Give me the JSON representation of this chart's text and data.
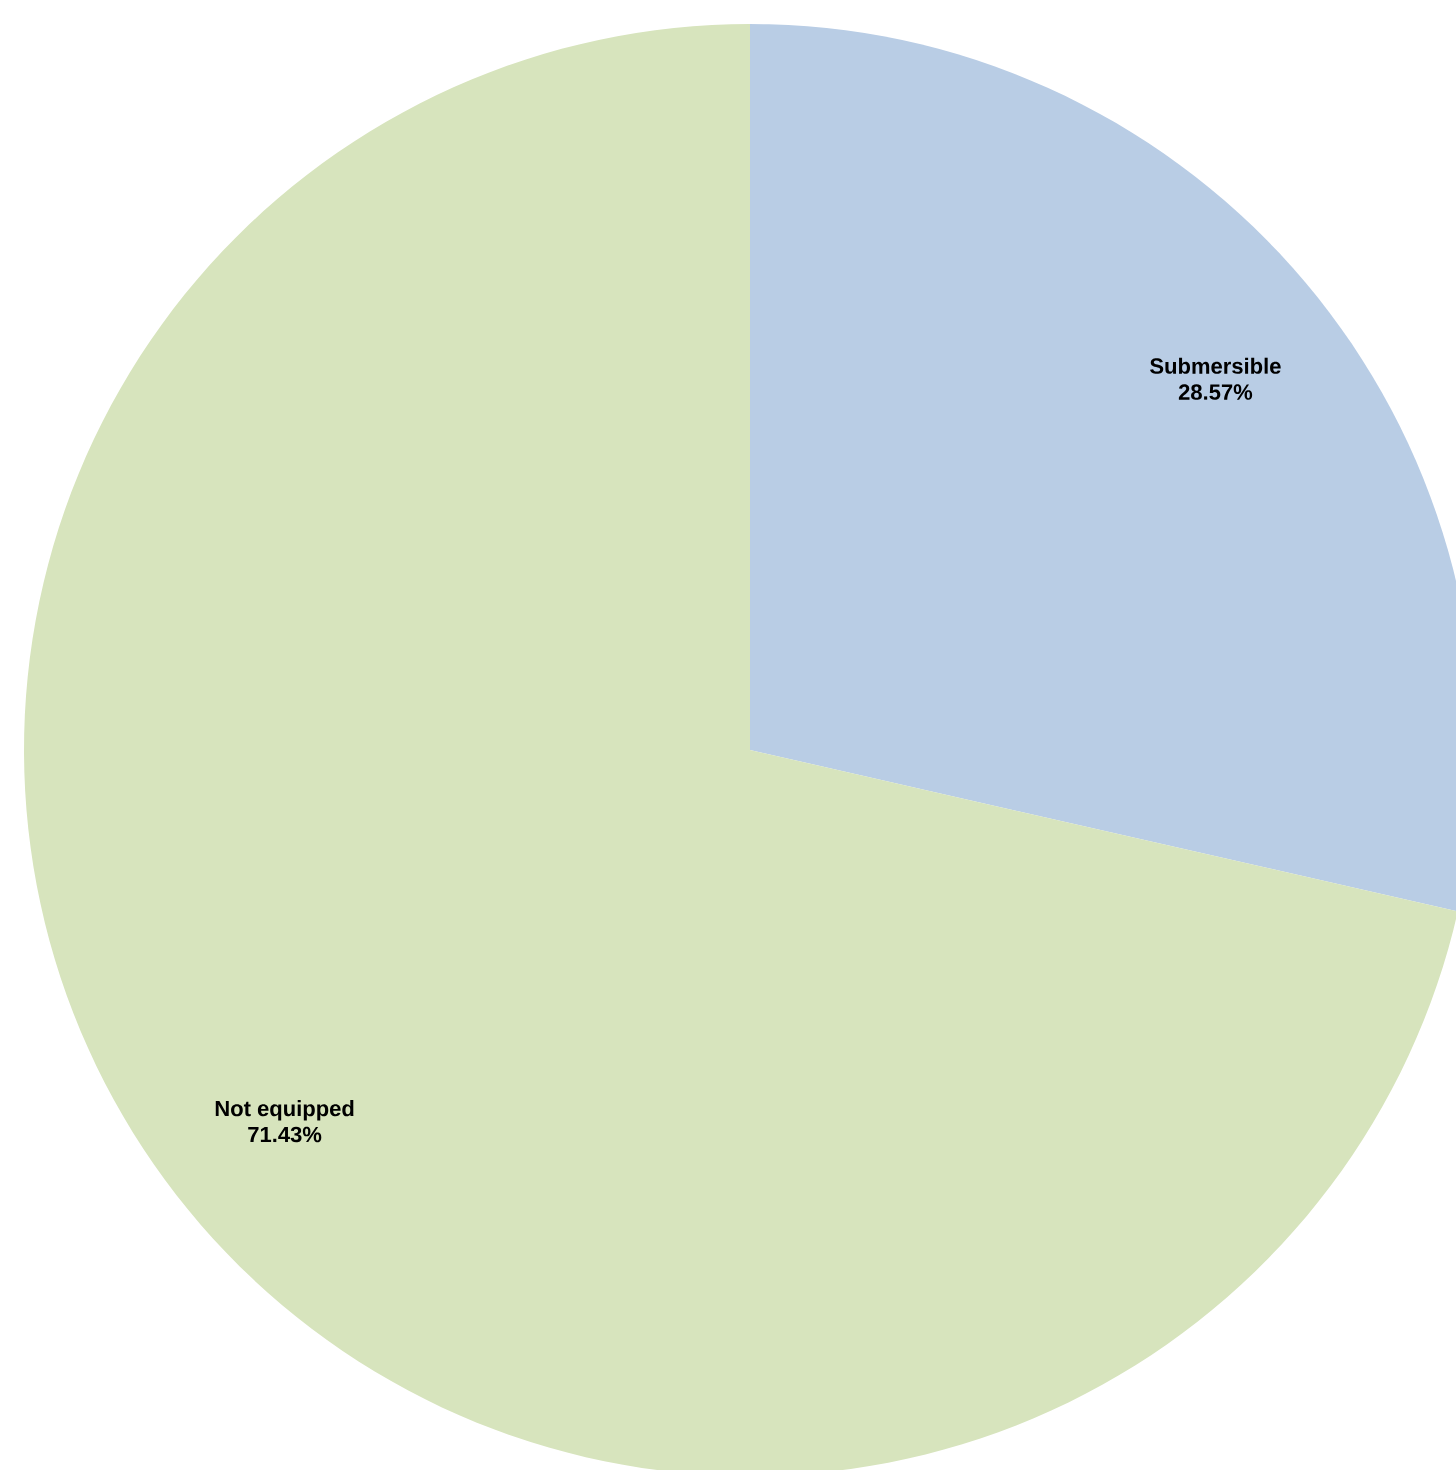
{
  "chart_data": {
    "type": "pie",
    "categories": [
      "Submersible",
      "Not equipped"
    ],
    "values": [
      28.57,
      71.43
    ],
    "colors": [
      "#b9cde5",
      "#d7e4bd"
    ],
    "value_labels": [
      "28.57%",
      "71.43%"
    ]
  }
}
